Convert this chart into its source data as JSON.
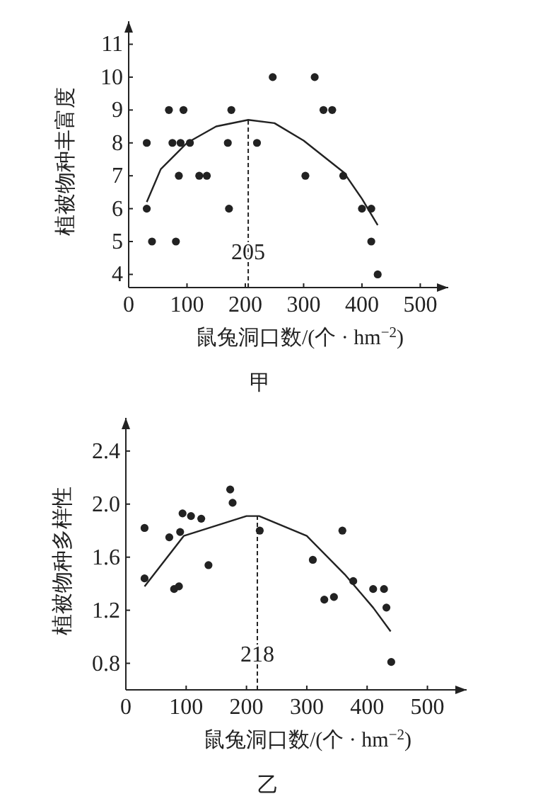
{
  "chart_data": [
    {
      "type": "scatter",
      "title": "甲",
      "xlabel": "鼠兔洞口数/(个 · hm$^{−2}$)",
      "ylabel": "植被物种丰富度",
      "xlim": [
        0,
        548
      ],
      "ylim": [
        3.6,
        11.7
      ],
      "xticks": [
        0,
        100,
        200,
        300,
        400,
        500
      ],
      "yticks": [
        4,
        5,
        6,
        7,
        8,
        9,
        10,
        11
      ],
      "grid": false,
      "series": [
        {
          "marker": "circle",
          "color": "#222222",
          "x": [
            31,
            31,
            40,
            69,
            75,
            81,
            86,
            89,
            94,
            105,
            121,
            134,
            170,
            172,
            176,
            220,
            247,
            303,
            319,
            334,
            349,
            368,
            400,
            416,
            416,
            427
          ],
          "values": [
            6,
            8,
            5,
            9,
            8,
            5,
            7,
            8,
            9,
            8,
            7,
            7,
            8,
            6,
            9,
            8,
            10,
            7,
            10,
            9,
            9,
            7,
            6,
            6,
            5,
            4
          ]
        },
        {
          "type": "line",
          "line_style": "solid",
          "color": "#222222",
          "x": [
            31,
            55,
            100,
            150,
            205,
            250,
            300,
            369,
            400,
            427
          ],
          "values": [
            6.2,
            7.2,
            8.0,
            8.5,
            8.7,
            8.6,
            8.07,
            7.1,
            6.3,
            5.5
          ]
        }
      ],
      "ref_lines": [
        {
          "axis": "x",
          "value": 205,
          "label": "205",
          "line_style": "dashed",
          "color": "#222222"
        }
      ]
    },
    {
      "type": "scatter",
      "title": "乙",
      "xlabel": "鼠兔洞口数/(个 · hm$^{−2}$)",
      "ylabel": "植被物种多样性",
      "xlim": [
        0,
        565
      ],
      "ylim": [
        0.6,
        2.65
      ],
      "xticks": [
        0,
        100,
        200,
        300,
        400,
        500
      ],
      "yticks": [
        0.8,
        1.2,
        1.6,
        {
          "value": 2,
          "label": "2.0"
        },
        2.4
      ],
      "grid": false,
      "series": [
        {
          "marker": "circle",
          "color": "#222222",
          "x": [
            31,
            31,
            72,
            80,
            88,
            90,
            94,
            108,
            125,
            137,
            173,
            177,
            222,
            310,
            329,
            345,
            359,
            377,
            410,
            428,
            432,
            440
          ],
          "values": [
            1.82,
            1.44,
            1.75,
            1.36,
            1.38,
            1.79,
            1.93,
            1.91,
            1.89,
            1.54,
            2.11,
            2.01,
            1.8,
            1.58,
            1.28,
            1.3,
            1.8,
            1.42,
            1.36,
            1.36,
            1.22,
            0.81
          ]
        },
        {
          "type": "line",
          "line_style": "solid",
          "color": "#222222",
          "x": [
            31,
            96,
            200,
            221,
            300,
            363,
            410,
            439
          ],
          "values": [
            1.38,
            1.76,
            1.91,
            1.91,
            1.76,
            1.47,
            1.22,
            1.04
          ]
        }
      ],
      "ref_lines": [
        {
          "axis": "x",
          "value": 218,
          "label": "218",
          "line_style": "dashed",
          "color": "#222222"
        }
      ]
    }
  ]
}
